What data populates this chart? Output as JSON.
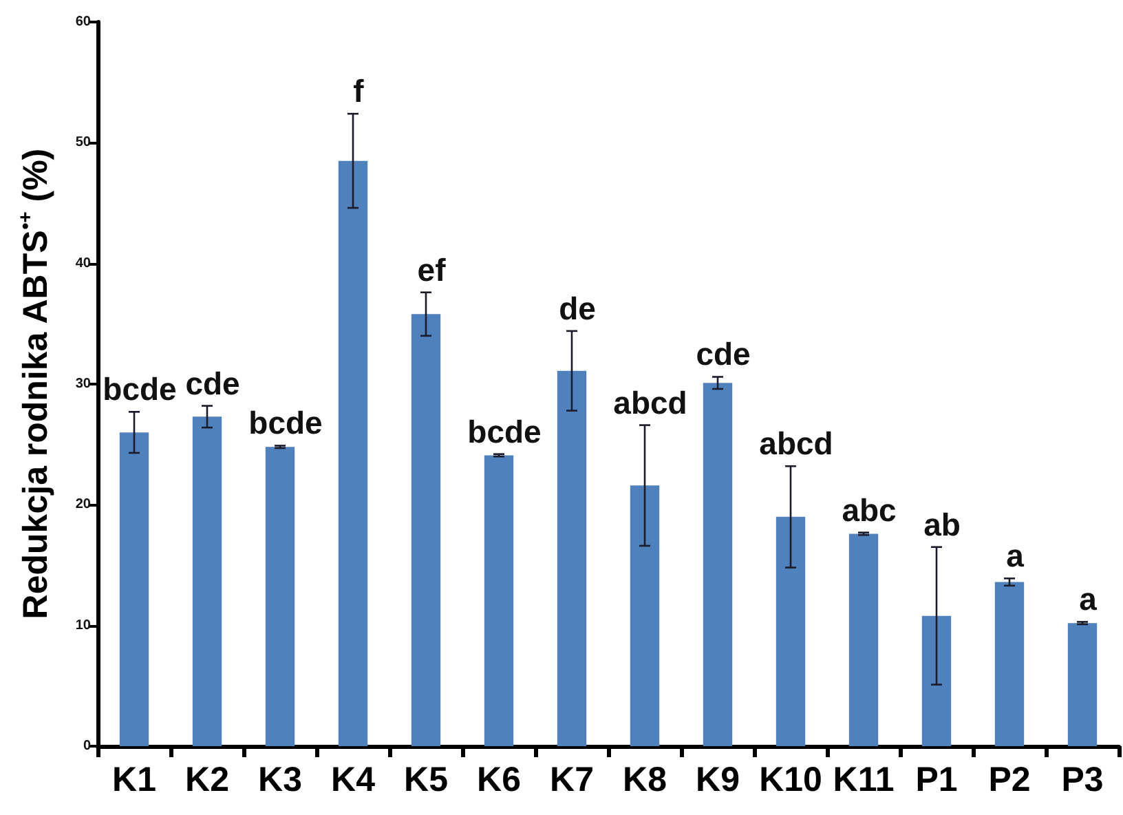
{
  "chart_data": {
    "type": "bar",
    "ylabel": "Redukcja rodnika ABTS$^{•+}$ (%)",
    "categories": [
      "K1",
      "K2",
      "K3",
      "K4",
      "K5",
      "K6",
      "K7",
      "K8",
      "K9",
      "K10",
      "K11",
      "P1",
      "P2",
      "P3"
    ],
    "values": [
      26.0,
      27.3,
      24.8,
      48.5,
      35.8,
      24.1,
      31.1,
      21.6,
      30.1,
      19.0,
      17.6,
      10.8,
      13.6,
      10.2
    ],
    "errors": [
      1.7,
      0.9,
      0.1,
      3.9,
      1.8,
      0.1,
      3.3,
      5.0,
      0.5,
      4.2,
      0.1,
      5.7,
      0.3,
      0.1
    ],
    "color": "#4f81bd",
    "ylim": [
      0,
      60
    ],
    "yticks": [
      0,
      10,
      20,
      30,
      40,
      50,
      60
    ],
    "annotations": [
      {
        "text": "bcde",
        "x": "K1",
        "y": 27.7
      },
      {
        "text": "cde",
        "x": "K2",
        "y": 28.2
      },
      {
        "text": "bcde",
        "x": "K3",
        "y": 24.9
      },
      {
        "text": "f",
        "x": "K4",
        "y": 52.4
      },
      {
        "text": "ef",
        "x": "K5",
        "y": 37.6
      },
      {
        "text": "bcde",
        "x": "K6",
        "y": 24.2
      },
      {
        "text": "de",
        "x": "K7",
        "y": 34.4
      },
      {
        "text": "abcd",
        "x": "K8",
        "y": 26.6
      },
      {
        "text": "cde",
        "x": "K9",
        "y": 30.6
      },
      {
        "text": "abcd",
        "x": "K10",
        "y": 23.2
      },
      {
        "text": "abc",
        "x": "K11",
        "y": 17.7
      },
      {
        "text": "ab",
        "x": "P1",
        "y": 16.5
      },
      {
        "text": "a",
        "x": "P2",
        "y": 13.9
      },
      {
        "text": "a",
        "x": "P3",
        "y": 10.3
      }
    ]
  }
}
